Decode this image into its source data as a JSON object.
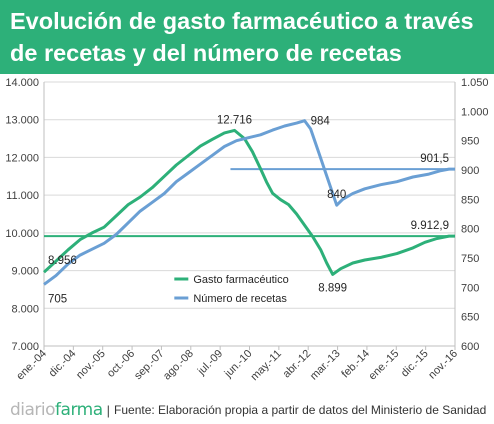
{
  "header": {
    "title_line1": "Evolución de gasto farmacéutico a través",
    "title_line2": "de recetas y del número de recetas"
  },
  "footer": {
    "logo_part1": "diario",
    "logo_part2": "farma",
    "separator": "|",
    "source": "Fuente: Elaboración propia a partir de datos del Ministerio de Sanidad"
  },
  "chart_data": {
    "type": "line",
    "title": "",
    "xlabel": "",
    "ylabel": "",
    "grid": true,
    "legend_position": "center",
    "x_tick_labels": [
      "ene.-04",
      "dic.-04",
      "nov.-05",
      "oct.-06",
      "sep.-07",
      "ago.-08",
      "jul.-09",
      "jun.-10",
      "may.-11",
      "abr.-12",
      "mar.-13",
      "feb.-14",
      "ene.-15",
      "dic.-15",
      "nov.-16"
    ],
    "y_left": {
      "min": 7000,
      "max": 14000,
      "ticks": [
        "7.000",
        "8.000",
        "9.000",
        "10.000",
        "11.000",
        "12.000",
        "13.000",
        "14.000"
      ]
    },
    "y_right": {
      "min": 600,
      "max": 1050,
      "ticks": [
        "600",
        "650",
        "700",
        "750",
        "800",
        "850",
        "900",
        "950",
        "1.000",
        "1.050"
      ]
    },
    "series": [
      {
        "name": "Gasto farmacéutico",
        "axis": "left",
        "color": "#2db079",
        "points": [
          [
            0,
            8956
          ],
          [
            6,
            9250
          ],
          [
            12,
            9550
          ],
          [
            18,
            9820
          ],
          [
            24,
            10000
          ],
          [
            30,
            10150
          ],
          [
            36,
            10450
          ],
          [
            42,
            10750
          ],
          [
            48,
            10950
          ],
          [
            54,
            11200
          ],
          [
            60,
            11500
          ],
          [
            66,
            11800
          ],
          [
            72,
            12050
          ],
          [
            78,
            12300
          ],
          [
            84,
            12480
          ],
          [
            90,
            12650
          ],
          [
            95,
            12716
          ],
          [
            100,
            12500
          ],
          [
            104,
            12150
          ],
          [
            108,
            11700
          ],
          [
            111,
            11350
          ],
          [
            114,
            11050
          ],
          [
            118,
            10880
          ],
          [
            122,
            10750
          ],
          [
            126,
            10500
          ],
          [
            130,
            10200
          ],
          [
            134,
            9900
          ],
          [
            138,
            9550
          ],
          [
            141,
            9200
          ],
          [
            144,
            8899
          ],
          [
            148,
            9050
          ],
          [
            154,
            9200
          ],
          [
            160,
            9280
          ],
          [
            168,
            9350
          ],
          [
            176,
            9450
          ],
          [
            184,
            9600
          ],
          [
            190,
            9750
          ],
          [
            196,
            9850
          ],
          [
            202,
            9912.9
          ],
          [
            205,
            9912.9
          ]
        ]
      },
      {
        "name": "Número de recetas",
        "axis": "right",
        "color": "#6a9fd4",
        "points": [
          [
            0,
            705
          ],
          [
            6,
            720
          ],
          [
            12,
            740
          ],
          [
            18,
            755
          ],
          [
            24,
            765
          ],
          [
            30,
            775
          ],
          [
            36,
            790
          ],
          [
            42,
            810
          ],
          [
            48,
            830
          ],
          [
            54,
            845
          ],
          [
            60,
            860
          ],
          [
            66,
            880
          ],
          [
            72,
            895
          ],
          [
            78,
            910
          ],
          [
            84,
            925
          ],
          [
            90,
            940
          ],
          [
            96,
            950
          ],
          [
            102,
            955
          ],
          [
            108,
            960
          ],
          [
            114,
            968
          ],
          [
            120,
            975
          ],
          [
            126,
            980
          ],
          [
            130,
            984
          ],
          [
            133,
            970
          ],
          [
            137,
            930
          ],
          [
            141,
            890
          ],
          [
            144,
            860
          ],
          [
            146,
            840
          ],
          [
            149,
            850
          ],
          [
            154,
            860
          ],
          [
            160,
            868
          ],
          [
            168,
            875
          ],
          [
            176,
            880
          ],
          [
            184,
            888
          ],
          [
            192,
            893
          ],
          [
            198,
            899
          ],
          [
            202,
            901.5
          ],
          [
            205,
            901.5
          ]
        ]
      }
    ],
    "reference_lines": [
      {
        "axis": "left",
        "value": 9912.9
      },
      {
        "axis": "right",
        "value": 901.5
      }
    ],
    "annotations": [
      {
        "text": "8.956",
        "series": "Gasto farmacéutico"
      },
      {
        "text": "705",
        "series": "Número de recetas"
      },
      {
        "text": "12.716",
        "series": "Gasto farmacéutico"
      },
      {
        "text": "984",
        "series": "Número de recetas"
      },
      {
        "text": "840",
        "series": "Número de recetas"
      },
      {
        "text": "8.899",
        "series": "Gasto farmacéutico"
      },
      {
        "text": "901,5",
        "series": "Número de recetas"
      },
      {
        "text": "9.912,9",
        "series": "Gasto farmacéutico"
      }
    ]
  }
}
